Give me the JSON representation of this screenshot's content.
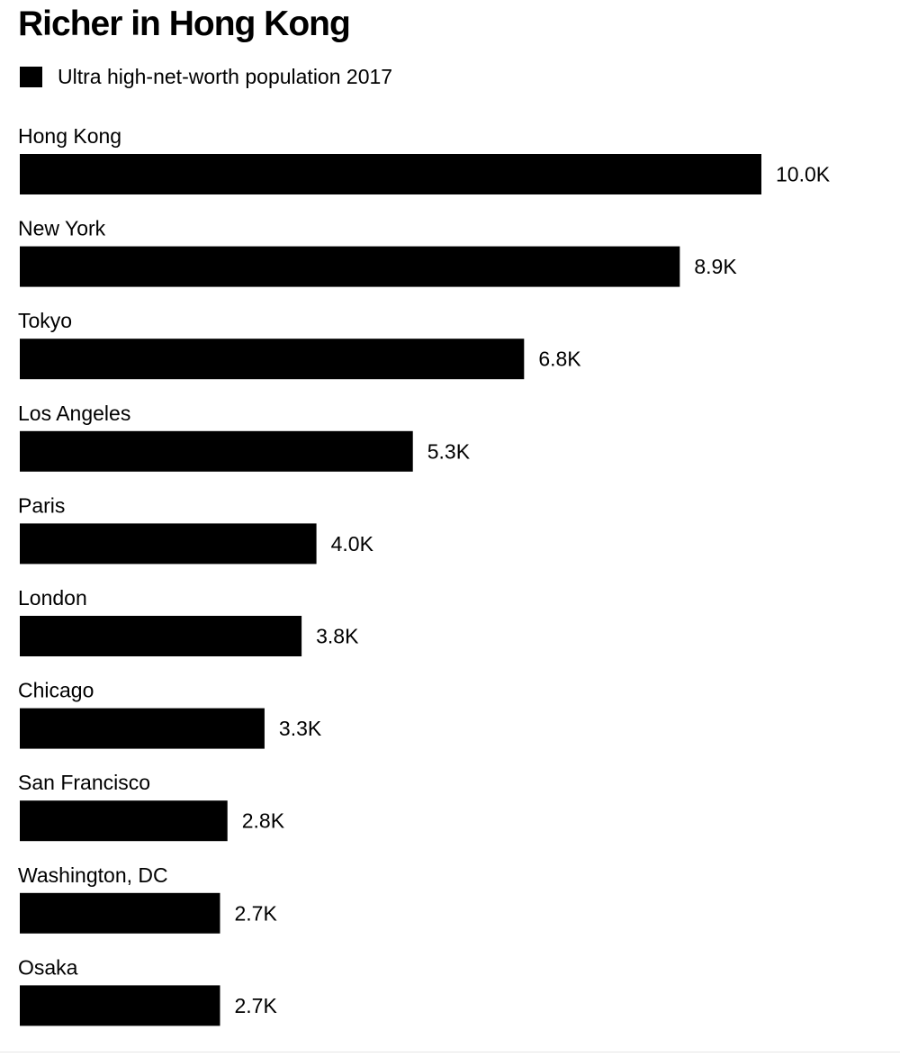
{
  "chart_data": {
    "type": "bar",
    "orientation": "horizontal",
    "title": "Richer in Hong Kong",
    "categories": [
      "Hong Kong",
      "New York",
      "Tokyo",
      "Los Angeles",
      "Paris",
      "London",
      "Chicago",
      "San Francisco",
      "Washington, DC",
      "Osaka"
    ],
    "series": [
      {
        "name": "Ultra high-net-worth population 2017",
        "values": [
          10.0,
          8.9,
          6.8,
          5.3,
          4.0,
          3.8,
          3.3,
          2.8,
          2.7,
          2.7
        ],
        "labels": [
          "10.0K",
          "8.9K",
          "6.8K",
          "5.3K",
          "4.0K",
          "3.8K",
          "3.3K",
          "2.8K",
          "2.7K",
          "2.7K"
        ],
        "color": "#000000"
      }
    ],
    "value_unit": "K",
    "xlim": [
      0,
      10.0
    ],
    "grid": false,
    "legend": "top-left"
  }
}
